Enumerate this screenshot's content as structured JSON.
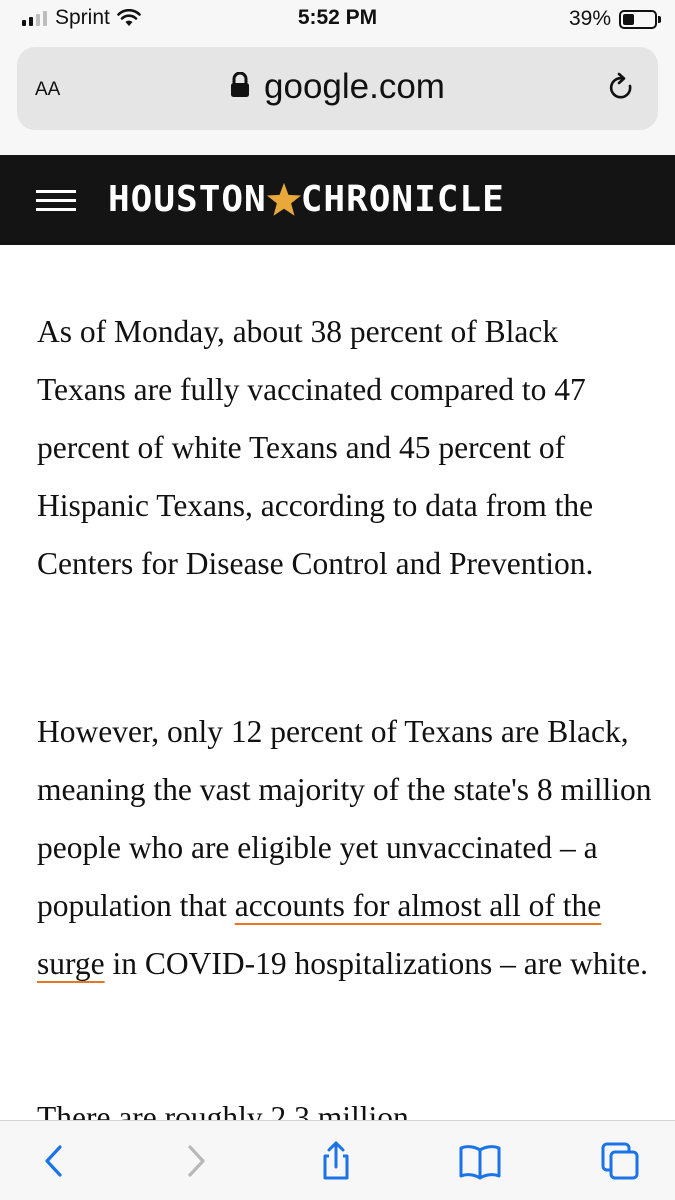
{
  "status_bar": {
    "carrier": "Sprint",
    "time": "5:52 PM",
    "battery_percent": "39%",
    "signal_bars": 2,
    "signal_bars_total": 4
  },
  "address_bar": {
    "text_size_label": "AA",
    "url": "google.com",
    "lock_icon": "lock-icon",
    "reload_icon": "reload-icon"
  },
  "site_header": {
    "menu_icon": "hamburger-icon",
    "logo_left": "HOUSTON",
    "logo_right": "CHRONICLE",
    "logo_star_color": "#e8a83a",
    "background": "#141414"
  },
  "article": {
    "paragraph_1": "As of Monday, about 38 percent of Black Texans are fully vaccinated compared to 47 percent of white Texans and 45 percent of Hispanic Texans, according to data from the Centers for Disease Control and Prevention.",
    "paragraph_2_before_link": "However, only 12 percent of Texans are Black, meaning the vast majority of the state's 8 million people who are eligible yet unvaccinated – a population that ",
    "paragraph_2_link": "accounts for almost all of the surge",
    "paragraph_2_after_link": " in COVID-19 hospitalizations – are white.",
    "paragraph_3_partial": "There are roughly 2.3 million",
    "link_underline_color": "#e87722"
  },
  "toolbar": {
    "back_icon": "back-icon",
    "forward_icon": "forward-icon",
    "share_icon": "share-icon",
    "bookmarks_icon": "bookmarks-icon",
    "tabs_icon": "tabs-icon",
    "accent_color": "#1a73e8"
  }
}
